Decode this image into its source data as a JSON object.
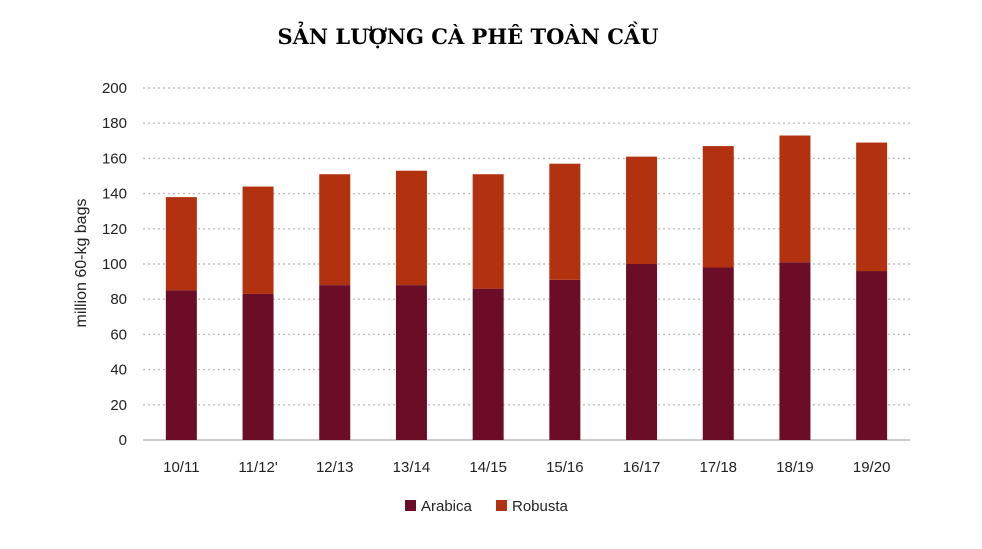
{
  "chart_data": {
    "type": "bar",
    "stacked": true,
    "title": "SẢN LƯỢNG CÀ PHÊ TOÀN CẦU",
    "xlabel": "",
    "ylabel": "million 60-kg bags",
    "ylim": [
      0,
      200
    ],
    "yticks": [
      0,
      20,
      40,
      60,
      80,
      100,
      120,
      140,
      160,
      180,
      200
    ],
    "grid": true,
    "legend_position": "bottom",
    "categories": [
      "10/11",
      "11/12'",
      "12/13",
      "13/14",
      "14/15",
      "15/16",
      "16/17",
      "17/18",
      "18/19",
      "19/20"
    ],
    "series": [
      {
        "name": "Arabica",
        "color": "#6b0d26",
        "values": [
          85,
          83,
          88,
          88,
          86,
          91,
          100,
          98,
          101,
          96
        ]
      },
      {
        "name": "Robusta",
        "color": "#b2310f",
        "values": [
          53,
          61,
          63,
          65,
          65,
          66,
          61,
          69,
          72,
          73
        ]
      }
    ]
  }
}
